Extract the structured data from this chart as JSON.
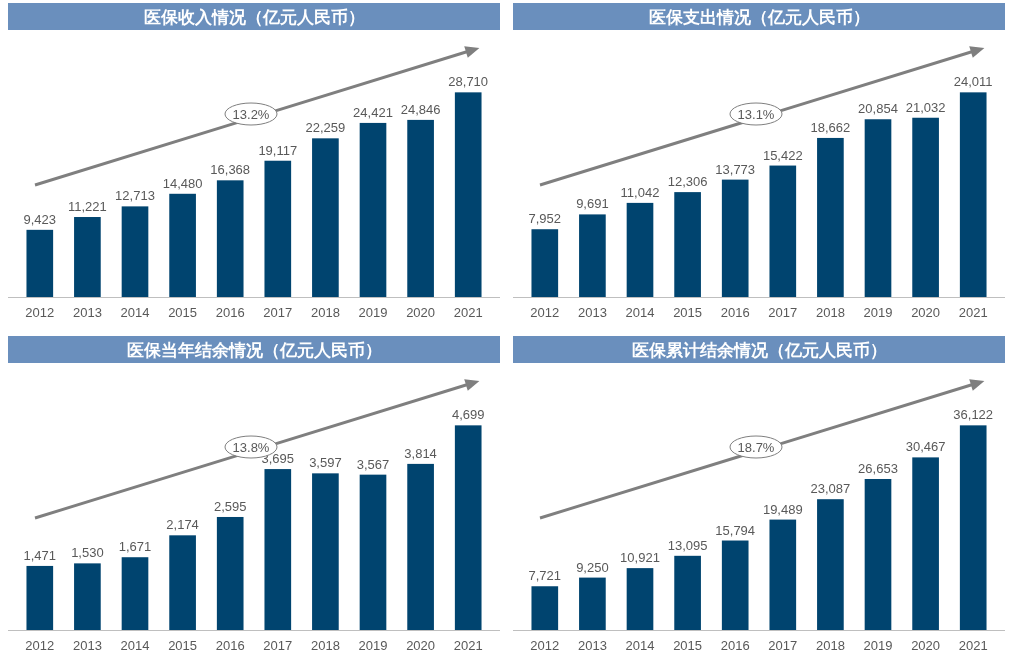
{
  "chart_data": [
    {
      "type": "bar",
      "title": "医保收入情况（亿元人民币）",
      "categories": [
        "2012",
        "2013",
        "2014",
        "2015",
        "2016",
        "2017",
        "2018",
        "2019",
        "2020",
        "2021"
      ],
      "values": [
        9423,
        11221,
        12713,
        14480,
        16368,
        19117,
        22259,
        24421,
        24846,
        28710
      ],
      "value_labels": [
        "9,423",
        "11,221",
        "12,713",
        "14,480",
        "16,368",
        "19,117",
        "22,259",
        "24,421",
        "24,846",
        "28,710"
      ],
      "color": "#00446f",
      "annotations": [
        "13.2%"
      ]
    },
    {
      "type": "bar",
      "title": "医保支出情况（亿元人民币）",
      "categories": [
        "2012",
        "2013",
        "2014",
        "2015",
        "2016",
        "2017",
        "2018",
        "2019",
        "2020",
        "2021"
      ],
      "values": [
        7952,
        9691,
        11042,
        12306,
        13773,
        15422,
        18662,
        20854,
        21032,
        24011
      ],
      "value_labels": [
        "7,952",
        "9,691",
        "11,042",
        "12,306",
        "13,773",
        "15,422",
        "18,662",
        "20,854",
        "21,032",
        "24,011"
      ],
      "color": "#00446f",
      "annotations": [
        "13.1%"
      ]
    },
    {
      "type": "bar",
      "title": "医保当年结余情况（亿元人民币）",
      "categories": [
        "2012",
        "2013",
        "2014",
        "2015",
        "2016",
        "2017",
        "2018",
        "2019",
        "2020",
        "2021"
      ],
      "values": [
        1471,
        1530,
        1671,
        2174,
        2595,
        3695,
        3597,
        3567,
        3814,
        4699
      ],
      "value_labels": [
        "1,471",
        "1,530",
        "1,671",
        "2,174",
        "2,595",
        "3,695",
        "3,597",
        "3,567",
        "3,814",
        "4,699"
      ],
      "color": "#00446f",
      "annotations": [
        "13.8%"
      ]
    },
    {
      "type": "bar",
      "title": "医保累计结余情况（亿元人民币）",
      "categories": [
        "2012",
        "2013",
        "2014",
        "2015",
        "2016",
        "2017",
        "2018",
        "2019",
        "2020",
        "2021"
      ],
      "values": [
        7721,
        9250,
        10921,
        13095,
        15794,
        19489,
        23087,
        26653,
        30467,
        36122
      ],
      "value_labels": [
        "7,721",
        "9,250",
        "10,921",
        "13,095",
        "15,794",
        "19,489",
        "23,087",
        "26,653",
        "30,467",
        "36,122"
      ],
      "color": "#00446f",
      "annotations": [
        "18.7%"
      ]
    }
  ]
}
